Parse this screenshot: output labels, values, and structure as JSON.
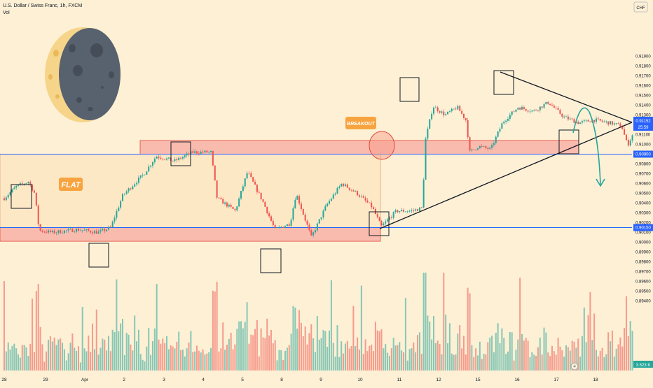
{
  "header": {
    "symbol": "U.S. Dollar / Swiss Franc, 1h, FXCM",
    "volume_label": "Vol"
  },
  "currency_badge": "CHF",
  "annotations": {
    "flat": "FLAT",
    "breakout": "BREAKOUT"
  },
  "price_tags": {
    "last_price": "0.91152",
    "countdown": "25:59",
    "level_upper": "0.90900",
    "level_lower": "0.90150",
    "volume_last": "3.523 K"
  },
  "colors": {
    "background": "#fdf0d5",
    "bull": "#26a69a",
    "bear": "#ef5350",
    "zone_fill": "#f7a9a0",
    "level_line": "#2962ff",
    "label_bg": "#f7a440",
    "moon_dark": "#58616e",
    "moon_light": "#f6d58a"
  },
  "icons": [
    "moon-icon",
    "lightning-icon"
  ],
  "chart_data": {
    "type": "candlestick",
    "title": "",
    "x_ticks": [
      "28",
      "29",
      "Apr",
      "2",
      "3",
      "4",
      "5",
      "8",
      "9",
      "10",
      "11",
      "12",
      "15",
      "16",
      "17",
      "18"
    ],
    "y_ticks": [
      "0.91900",
      "0.91800",
      "0.91700",
      "0.91600",
      "0.91500",
      "0.91400",
      "0.91300",
      "0.91200",
      "0.91100",
      "0.91000",
      "0.90800",
      "0.90700",
      "0.90600",
      "0.90500",
      "0.90400",
      "0.90300",
      "0.90200",
      "0.90100",
      "0.90000",
      "0.89900",
      "0.89800",
      "0.89700",
      "0.89600",
      "0.89500",
      "0.89400"
    ],
    "y_range": [
      0.8935,
      0.9196
    ],
    "levels": {
      "resistance": 0.909,
      "support": 0.9015
    },
    "zones": [
      {
        "name": "flat-range",
        "from_day": "28",
        "to_day": "10",
        "low": 0.9015,
        "high": 0.909
      },
      {
        "name": "lower-zone",
        "from_day": "28",
        "to_day": "10",
        "low": 0.9001,
        "high": 0.9015
      },
      {
        "name": "upper-zone",
        "from_day": "2",
        "to_day": "17",
        "low": 0.909,
        "high": 0.9104
      }
    ],
    "price_path": [
      {
        "x": 0,
        "p": 0.9045
      },
      {
        "x": 0.4,
        "p": 0.9057
      },
      {
        "x": 0.8,
        "p": 0.9062
      },
      {
        "x": 1.0,
        "p": 0.905
      },
      {
        "x": 1.15,
        "p": 0.9012
      },
      {
        "x": 1.6,
        "p": 0.901
      },
      {
        "x": 2.4,
        "p": 0.9013
      },
      {
        "x": 3.1,
        "p": 0.901
      },
      {
        "x": 3.5,
        "p": 0.9015
      },
      {
        "x": 3.9,
        "p": 0.9048
      },
      {
        "x": 4.6,
        "p": 0.907
      },
      {
        "x": 5.0,
        "p": 0.9088
      },
      {
        "x": 5.6,
        "p": 0.9083
      },
      {
        "x": 6.2,
        "p": 0.9092
      },
      {
        "x": 6.8,
        "p": 0.9092
      },
      {
        "x": 7.0,
        "p": 0.9045
      },
      {
        "x": 7.6,
        "p": 0.9032
      },
      {
        "x": 8.0,
        "p": 0.9072
      },
      {
        "x": 8.5,
        "p": 0.9042
      },
      {
        "x": 8.9,
        "p": 0.9013
      },
      {
        "x": 9.4,
        "p": 0.9019
      },
      {
        "x": 9.6,
        "p": 0.905
      },
      {
        "x": 10.1,
        "p": 0.9005
      },
      {
        "x": 10.6,
        "p": 0.9038
      },
      {
        "x": 11.1,
        "p": 0.906
      },
      {
        "x": 11.6,
        "p": 0.905
      },
      {
        "x": 12.1,
        "p": 0.9036
      },
      {
        "x": 12.4,
        "p": 0.9016
      },
      {
        "x": 12.9,
        "p": 0.9032
      },
      {
        "x": 13.4,
        "p": 0.9032
      },
      {
        "x": 13.75,
        "p": 0.9035
      },
      {
        "x": 13.85,
        "p": 0.9104
      },
      {
        "x": 14.1,
        "p": 0.9139
      },
      {
        "x": 14.5,
        "p": 0.913
      },
      {
        "x": 14.9,
        "p": 0.9138
      },
      {
        "x": 15.2,
        "p": 0.9124
      },
      {
        "x": 15.3,
        "p": 0.9092
      },
      {
        "x": 15.6,
        "p": 0.9098
      },
      {
        "x": 16.0,
        "p": 0.9095
      },
      {
        "x": 16.4,
        "p": 0.9123
      },
      {
        "x": 16.9,
        "p": 0.9138
      },
      {
        "x": 17.4,
        "p": 0.9134
      },
      {
        "x": 17.9,
        "p": 0.9143
      },
      {
        "x": 18.4,
        "p": 0.9128
      },
      {
        "x": 18.9,
        "p": 0.9122
      },
      {
        "x": 19.4,
        "p": 0.9125
      },
      {
        "x": 19.9,
        "p": 0.9122
      },
      {
        "x": 20.3,
        "p": 0.9119
      },
      {
        "x": 20.5,
        "p": 0.9099
      },
      {
        "x": 20.7,
        "p": 0.9112
      }
    ],
    "volume_range": [
      0,
      6000
    ],
    "volume_last": 3523
  }
}
